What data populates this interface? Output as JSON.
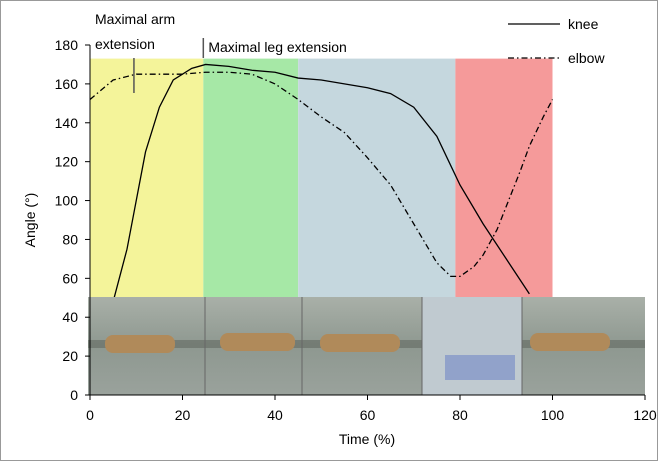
{
  "chart_data": {
    "type": "line",
    "x_label": "Time (%)",
    "y_label": "Angle (°)",
    "xlim": [
      0,
      120
    ],
    "xticks": [
      0,
      20,
      40,
      60,
      80,
      100,
      120
    ],
    "ylim": [
      0,
      180
    ],
    "yticks": [
      0,
      20,
      40,
      60,
      80,
      100,
      120,
      140,
      160,
      180
    ],
    "grid": false,
    "legend": "upper right",
    "phases": [
      {
        "start": 0,
        "end": 24.5,
        "top": 173,
        "color": "#f4f49a"
      },
      {
        "start": 24.5,
        "end": 45,
        "top": 173,
        "color": "#a6e8a6"
      },
      {
        "start": 45,
        "end": 79,
        "top": 173,
        "color": "#c5d7de"
      },
      {
        "start": 79,
        "end": 100,
        "top": 173,
        "color": "#f59a9a"
      }
    ],
    "annotations": [
      {
        "lines": [
          "Maximal arm",
          "extension"
        ],
        "x": 9.5
      },
      {
        "lines": [
          "Maximal leg extension"
        ],
        "x": 24.5
      }
    ],
    "series": [
      {
        "name": "knee",
        "color": "#000000",
        "dash": "solid",
        "x": [
          5,
          8,
          10,
          12,
          15,
          18,
          22,
          25,
          30,
          35,
          40,
          45,
          50,
          55,
          60,
          65,
          70,
          75,
          78,
          80,
          85,
          90,
          95
        ],
        "values": [
          48,
          75,
          100,
          125,
          148,
          162,
          168,
          170,
          169,
          167,
          166,
          163,
          162,
          160,
          158,
          155,
          148,
          133,
          118,
          108,
          88,
          70,
          52
        ]
      },
      {
        "name": "elbow",
        "color": "#000000",
        "dash": "dashdot",
        "x": [
          0,
          5,
          10,
          15,
          20,
          25,
          30,
          35,
          40,
          45,
          50,
          55,
          60,
          65,
          70,
          75,
          78,
          80,
          83,
          85,
          88,
          90,
          93,
          95,
          98,
          100
        ],
        "values": [
          152,
          162,
          165,
          165,
          165,
          166,
          166,
          165,
          160,
          152,
          143,
          135,
          122,
          108,
          88,
          68,
          61,
          61,
          66,
          72,
          85,
          97,
          115,
          128,
          143,
          152
        ]
      }
    ]
  }
}
